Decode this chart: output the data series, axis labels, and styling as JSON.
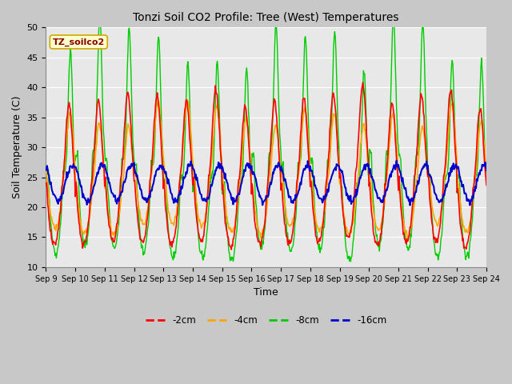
{
  "title": "Tonzi Soil CO2 Profile: Tree (West) Temperatures",
  "xlabel": "Time",
  "ylabel": "Soil Temperature (C)",
  "ylim": [
    10,
    50
  ],
  "n_days": 15,
  "x_tick_labels": [
    "Sep 9",
    "Sep 10",
    "Sep 11",
    "Sep 12",
    "Sep 13",
    "Sep 14",
    "Sep 15",
    "Sep 16",
    "Sep 17",
    "Sep 18",
    "Sep 19",
    "Sep 20",
    "Sep 21",
    "Sep 22",
    "Sep 23",
    "Sep 24"
  ],
  "legend_label": "TZ_soilco2",
  "series_labels": [
    "-2cm",
    "-4cm",
    "-8cm",
    "-16cm"
  ],
  "colors": [
    "#ff0000",
    "#ffa500",
    "#00cc00",
    "#0000cc"
  ],
  "bg_color": "#e8e8e8",
  "fig_bg_color": "#c8c8c8",
  "legend_box_facecolor": "#ffffcc",
  "legend_box_edgecolor": "#ccaa00",
  "legend_text_color": "#880000",
  "grid_color": "#ffffff"
}
